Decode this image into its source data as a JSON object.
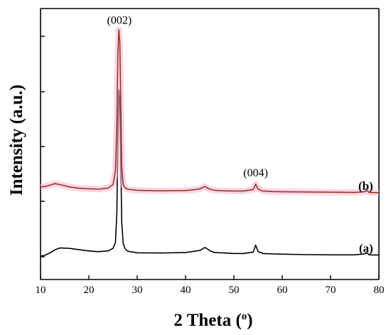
{
  "chart_data": {
    "type": "line",
    "xlabel": "2 Theta (",
    "xlabel_unit": "o",
    "xlabel_close": ")",
    "ylabel": "Intensity (a.u.)",
    "xlim": [
      10,
      80
    ],
    "ylim": [
      0,
      100
    ],
    "x_ticks": [
      10,
      20,
      30,
      40,
      50,
      60,
      70,
      80
    ],
    "y_ticks": [
      0,
      20,
      40,
      60,
      80,
      100
    ],
    "grid": false,
    "series": [
      {
        "label": "(a)",
        "color": "#000000",
        "x": [
          10,
          11,
          12,
          13,
          14,
          16,
          18,
          20,
          22,
          24,
          25,
          25.5,
          25.8,
          26.0,
          26.2,
          26.4,
          26.6,
          26.8,
          27.1,
          27.5,
          28,
          30,
          35,
          40,
          42,
          43,
          44,
          44.5,
          45,
          46,
          48,
          50,
          52,
          54,
          54.5,
          55,
          56,
          58,
          60,
          65,
          70,
          75,
          77,
          77.5,
          78,
          80
        ],
        "y": [
          3.0,
          3.5,
          4.5,
          5.8,
          6.6,
          6.4,
          5.8,
          5.3,
          5.0,
          5.3,
          6.4,
          9.0,
          22.0,
          55.0,
          75.0,
          70.0,
          45.0,
          18.0,
          8.5,
          6.2,
          5.2,
          4.5,
          4.4,
          4.6,
          5.2,
          5.5,
          6.8,
          6.2,
          5.4,
          4.6,
          4.4,
          4.2,
          4.2,
          4.8,
          7.8,
          5.0,
          4.2,
          4.0,
          3.9,
          3.7,
          3.6,
          3.6,
          4.0,
          4.5,
          3.6,
          3.5
        ]
      },
      {
        "label": "(b)",
        "color": "#a0321e",
        "x": [
          10,
          11,
          12,
          13,
          14,
          16,
          18,
          20,
          22,
          24,
          25,
          25.5,
          25.8,
          26.0,
          26.2,
          26.4,
          26.6,
          26.8,
          27.1,
          27.5,
          28,
          30,
          35,
          40,
          42,
          43,
          44,
          44.5,
          45,
          46,
          48,
          50,
          52,
          54,
          54.5,
          55,
          56,
          58,
          60,
          65,
          70,
          75,
          77,
          77.5,
          78,
          80
        ],
        "y": [
          33.0,
          33.2,
          33.8,
          34.4,
          34.0,
          33.0,
          32.4,
          32.2,
          32.0,
          32.5,
          34.0,
          40.0,
          60.0,
          90.0,
          101.0,
          96.0,
          70.0,
          42.0,
          34.0,
          32.6,
          32.0,
          31.5,
          31.3,
          31.4,
          31.8,
          32.2,
          33.2,
          32.6,
          32.0,
          31.5,
          31.3,
          31.2,
          31.2,
          31.8,
          34.2,
          32.0,
          31.2,
          31.0,
          30.9,
          30.8,
          30.7,
          30.6,
          30.9,
          31.4,
          30.6,
          30.5
        ]
      }
    ],
    "annotations": [
      {
        "text": "(002)",
        "x": 26.3,
        "y": 103.5
      },
      {
        "text": "(004)",
        "x": 54.5,
        "y": 37.5
      }
    ]
  }
}
